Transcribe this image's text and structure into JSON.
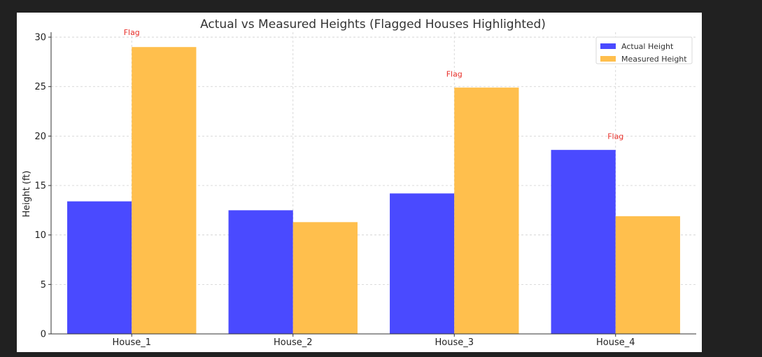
{
  "chart_data": {
    "type": "bar",
    "title": "Actual vs Measured Heights (Flagged Houses Highlighted)",
    "xlabel": "",
    "ylabel": "Height (ft)",
    "categories": [
      "House_1",
      "House_2",
      "House_3",
      "House_4"
    ],
    "series": [
      {
        "name": "Actual Height",
        "color": "#4a4aff",
        "values": [
          13.4,
          12.5,
          14.2,
          18.6
        ]
      },
      {
        "name": "Measured Height",
        "color": "#ffbf4d",
        "values": [
          29.0,
          11.3,
          24.9,
          11.9
        ]
      }
    ],
    "ylim": [
      0,
      30.5
    ],
    "yticks": [
      0,
      5,
      10,
      15,
      20,
      25,
      30
    ],
    "grid": true,
    "legend_position": "top-right",
    "annotations": [
      {
        "text": "Flag",
        "category": "House_1",
        "y": 30.2,
        "color": "#e8302a"
      },
      {
        "text": "Flag",
        "category": "House_3",
        "y": 26.0,
        "color": "#e8302a"
      },
      {
        "text": "Flag",
        "category": "House_4",
        "y": 19.7,
        "color": "#e8302a"
      }
    ]
  }
}
